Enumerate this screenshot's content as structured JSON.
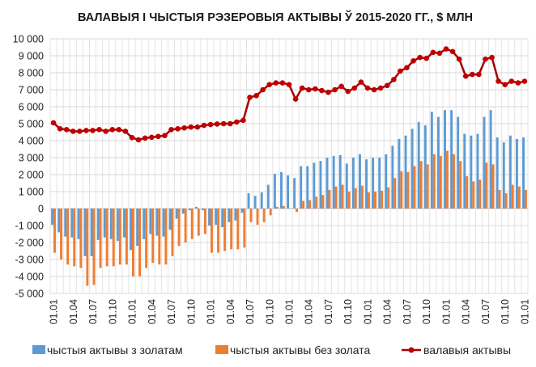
{
  "chart_data": {
    "type": "bar",
    "title": "ВАЛАВЫЯ І ЧЫСТЫЯ РЭЗЕРОВЫЯ АКТЫВЫ Ў 2015-2020 ГГ., $ МЛН",
    "xlabel": "",
    "ylabel": "",
    "ylim": [
      -5000,
      10000
    ],
    "yticks": [
      10000,
      9000,
      8000,
      7000,
      6000,
      5000,
      4000,
      3000,
      2000,
      1000,
      0,
      -1000,
      -2000,
      -3000,
      -4000,
      -5000
    ],
    "ytick_labels": [
      "10 000",
      "9 000",
      "8 000",
      "7 000",
      "6 000",
      "5 000",
      "4 000",
      "3 000",
      "2 000",
      "1 000",
      "0",
      "-1 000",
      "-2 000",
      "-3 000",
      "-4 000",
      "-5 000"
    ],
    "x_tick_labels": [
      "01.01",
      "01.04",
      "01.07",
      "01.10",
      "01.01",
      "01.04",
      "01.07",
      "01.10",
      "01.01",
      "01.04",
      "01.07",
      "01.10",
      "01.01",
      "01.04",
      "01.07",
      "01.10",
      "01.01",
      "01.04",
      "01.07",
      "01.10",
      "01.01",
      "01.04",
      "01.07",
      "01.10",
      "01.01"
    ],
    "x_tick_every": 3,
    "grid": true,
    "legend_position": "bottom",
    "series": [
      {
        "name": "чыстыя актывы з золатам",
        "type": "bar",
        "color": "#5b9bd5",
        "values": [
          -950,
          -1400,
          -1650,
          -1700,
          -1800,
          -2800,
          -2800,
          -1850,
          -1700,
          -1800,
          -1900,
          -1700,
          -2450,
          -2200,
          -1800,
          -1500,
          -1600,
          -1650,
          -1250,
          -600,
          -300,
          -100,
          100,
          -100,
          -1000,
          -950,
          -1100,
          -800,
          -700,
          -250,
          900,
          750,
          950,
          1400,
          2050,
          2150,
          1950,
          1800,
          2500,
          2500,
          2700,
          2800,
          3000,
          3100,
          3150,
          2650,
          3000,
          3200,
          2900,
          3000,
          3000,
          3200,
          3700,
          4100,
          4300,
          4700,
          5100,
          4900,
          5700,
          5400,
          5800,
          5800,
          5400,
          4400,
          4300,
          4400,
          5400,
          5800,
          4200,
          3900,
          4300,
          4100,
          4200
        ]
      },
      {
        "name": "чыстыя актывы без золата",
        "type": "bar",
        "color": "#ed7d31",
        "values": [
          -2600,
          -3000,
          -3300,
          -3400,
          -3500,
          -4550,
          -4500,
          -3500,
          -3400,
          -3400,
          -3300,
          -3300,
          -4000,
          -4000,
          -3500,
          -3200,
          -3300,
          -3300,
          -2800,
          -2200,
          -2000,
          -1800,
          -1600,
          -1500,
          -2600,
          -2600,
          -2500,
          -2400,
          -2400,
          -2300,
          -800,
          -950,
          -800,
          -400,
          100,
          150,
          0,
          -200,
          450,
          500,
          700,
          800,
          1100,
          1300,
          1400,
          1000,
          1200,
          1350,
          950,
          1000,
          1050,
          1250,
          1800,
          2200,
          2150,
          2500,
          2800,
          2600,
          3200,
          3100,
          3400,
          3200,
          2800,
          1900,
          1600,
          1700,
          2700,
          2600,
          1100,
          900,
          1400,
          1300,
          1100
        ]
      },
      {
        "name": "валавыя актывы",
        "type": "line",
        "color": "#c00000",
        "values": [
          5050,
          4700,
          4650,
          4550,
          4550,
          4600,
          4600,
          4650,
          4550,
          4650,
          4650,
          4550,
          4180,
          4050,
          4150,
          4200,
          4250,
          4300,
          4650,
          4700,
          4750,
          4800,
          4800,
          4900,
          4950,
          4980,
          5000,
          5000,
          5100,
          5200,
          6550,
          6650,
          7000,
          7300,
          7400,
          7400,
          7300,
          6450,
          7100,
          7000,
          7050,
          6950,
          6850,
          7000,
          7200,
          6900,
          7100,
          7450,
          7100,
          7000,
          7100,
          7250,
          7600,
          8100,
          8300,
          8700,
          8900,
          8850,
          9200,
          9150,
          9400,
          9250,
          8800,
          7800,
          7900,
          7900,
          8800,
          8900,
          7500,
          7300,
          7500,
          7400,
          7500
        ]
      }
    ]
  }
}
